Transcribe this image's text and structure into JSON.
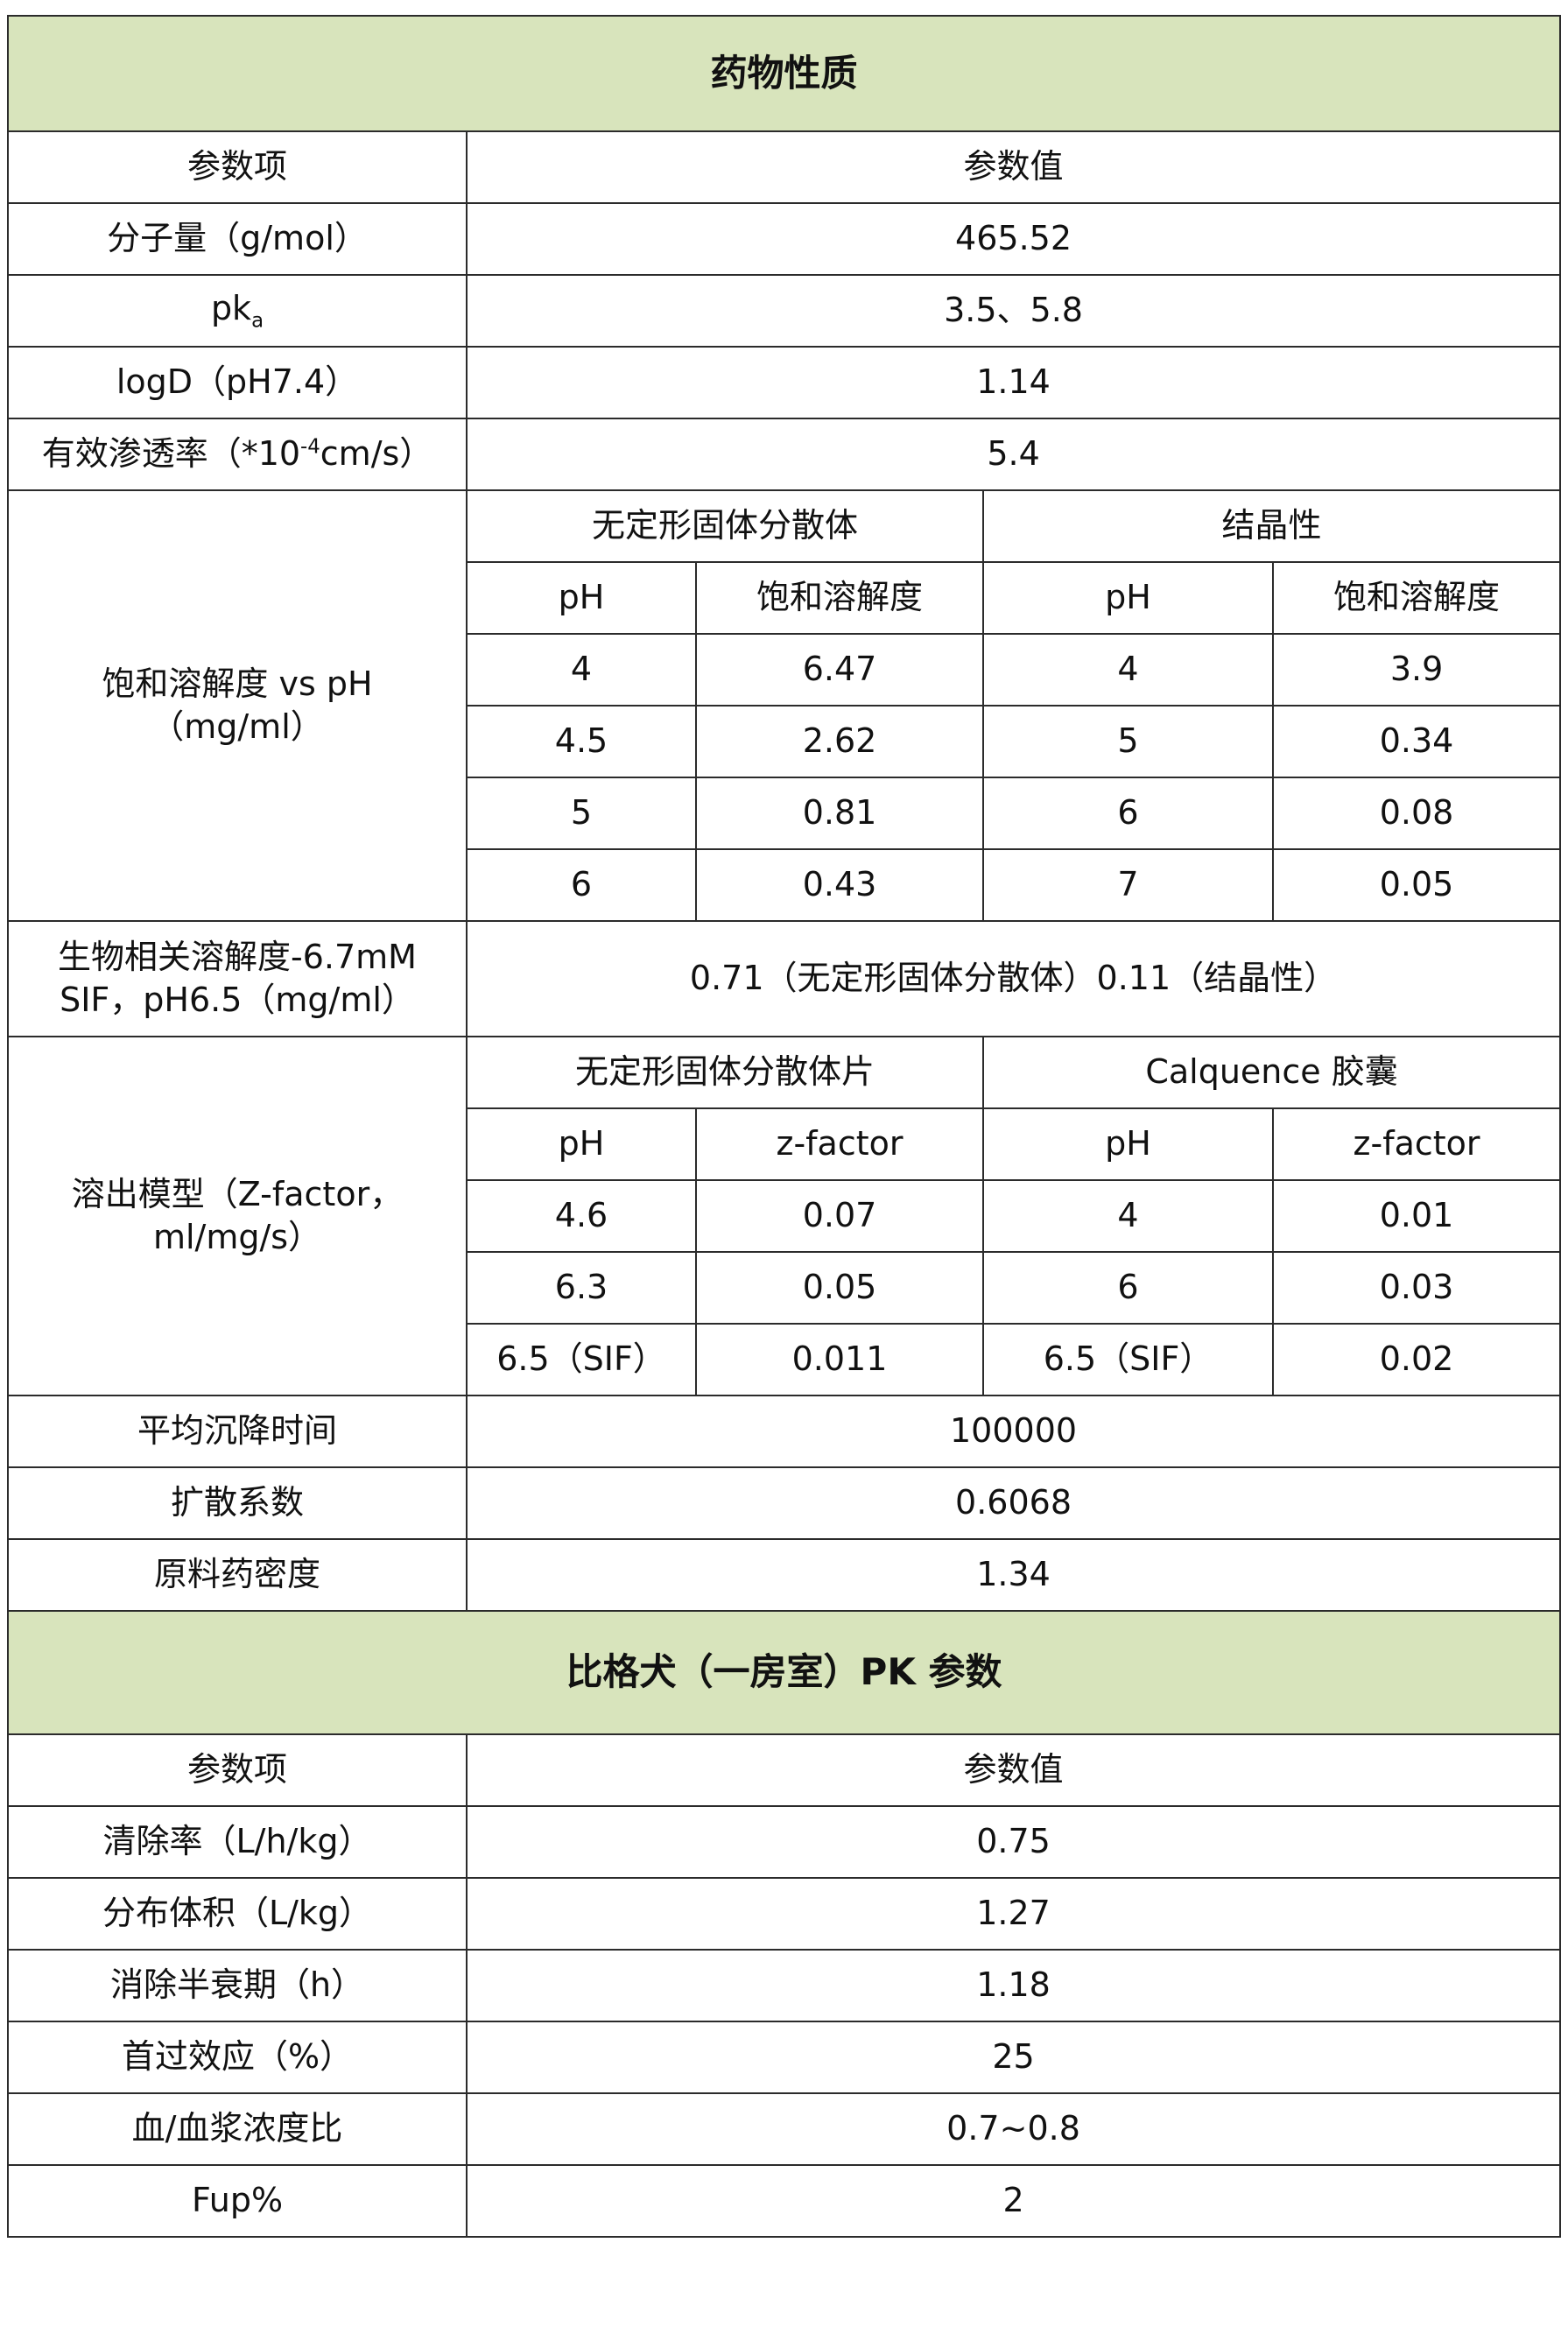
{
  "section1": {
    "title": "药物性质",
    "header": {
      "param": "参数项",
      "value": "参数值"
    },
    "rows": [
      {
        "param": "分子量（g/mol）",
        "value": "465.52"
      },
      {
        "param_main": "pk",
        "param_sub": "a",
        "value": "3.5、5.8"
      },
      {
        "param": "logD（pH7.4）",
        "value": "1.14"
      },
      {
        "param_pre": "有效渗透率（*10",
        "param_sup": "-4",
        "param_post": "cm/s）",
        "value": "5.4"
      }
    ],
    "solubility": {
      "param_line1": "饱和溶解度 vs pH",
      "param_line2": "（mg/ml）",
      "group_a": "无定形固体分散体",
      "group_b": "结晶性",
      "col_ph": "pH",
      "col_sol": "饱和溶解度",
      "rows": [
        {
          "a_ph": "4",
          "a_sol": "6.47",
          "b_ph": "4",
          "b_sol": "3.9"
        },
        {
          "a_ph": "4.5",
          "a_sol": "2.62",
          "b_ph": "5",
          "b_sol": "0.34"
        },
        {
          "a_ph": "5",
          "a_sol": "0.81",
          "b_ph": "6",
          "b_sol": "0.08"
        },
        {
          "a_ph": "6",
          "a_sol": "0.43",
          "b_ph": "7",
          "b_sol": "0.05"
        }
      ]
    },
    "bio": {
      "param_line1": "生物相关溶解度-6.7mM",
      "param_line2": "SIF，pH6.5（mg/ml）",
      "value": "0.71（无定形固体分散体）0.11（结晶性）"
    },
    "dissolution": {
      "param_line1": "溶出模型（Z-factor，",
      "param_line2": "ml/mg/s）",
      "group_a": "无定形固体分散体片",
      "group_b": "Calquence 胶囊",
      "col_ph": "pH",
      "col_z": "z-factor",
      "rows": [
        {
          "a_ph": "4.6",
          "a_z": "0.07",
          "b_ph": "4",
          "b_z": "0.01"
        },
        {
          "a_ph": "6.3",
          "a_z": "0.05",
          "b_ph": "6",
          "b_z": "0.03"
        },
        {
          "a_ph": "6.5（SIF）",
          "a_z": "0.011",
          "b_ph": "6.5（SIF）",
          "b_z": "0.02"
        }
      ]
    },
    "tail_rows": [
      {
        "param": "平均沉降时间",
        "value": "100000"
      },
      {
        "param": "扩散系数",
        "value": "0.6068"
      },
      {
        "param": "原料药密度",
        "value": "1.34"
      }
    ]
  },
  "section2": {
    "title": "比格犬（一房室）PK 参数",
    "header": {
      "param": "参数项",
      "value": "参数值"
    },
    "rows": [
      {
        "param": "清除率（L/h/kg）",
        "value": "0.75"
      },
      {
        "param": "分布体积（L/kg）",
        "value": "1.27"
      },
      {
        "param": "消除半衰期（h）",
        "value": "1.18"
      },
      {
        "param": "首过效应（%）",
        "value": "25"
      },
      {
        "param": "血/血浆浓度比",
        "value": "0.7~0.8"
      },
      {
        "param": "Fup%",
        "value": "2"
      }
    ]
  },
  "colors": {
    "section_header_bg": "#d8e4bc",
    "border": "#2b2b2b"
  }
}
